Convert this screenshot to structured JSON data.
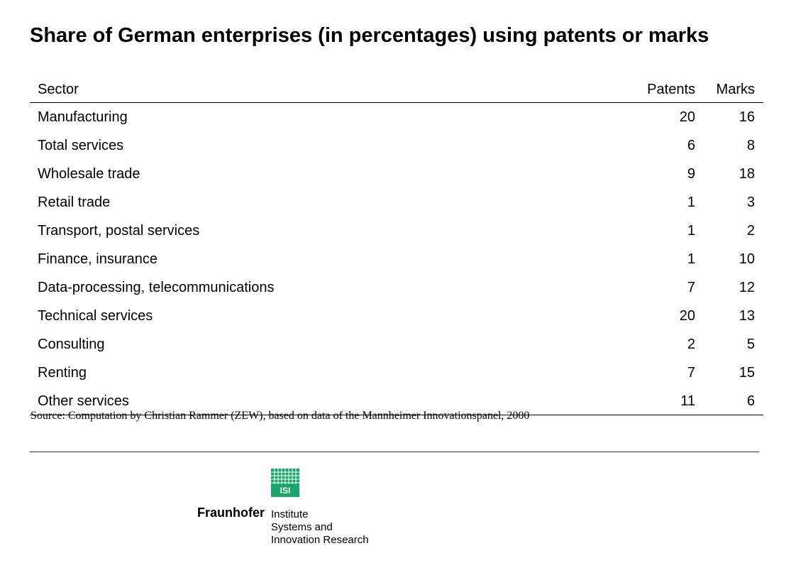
{
  "title": "Share of German enterprises (in percentages) using patents or marks",
  "table": {
    "headers": {
      "sector": "Sector",
      "patents": "Patents",
      "marks": "Marks"
    },
    "rows": [
      {
        "sector": "Manufacturing",
        "patents": "20",
        "marks": "16"
      },
      {
        "sector": "Total services",
        "patents": "6",
        "marks": "8"
      },
      {
        "sector": "Wholesale trade",
        "patents": "9",
        "marks": "18"
      },
      {
        "sector": "Retail trade",
        "patents": "1",
        "marks": "3"
      },
      {
        "sector": "Transport, postal services",
        "patents": "1",
        "marks": "2"
      },
      {
        "sector": "Finance, insurance",
        "patents": "1",
        "marks": "10"
      },
      {
        "sector": "Data-processing, telecommunications",
        "patents": "7",
        "marks": "12"
      },
      {
        "sector": "Technical services",
        "patents": "20",
        "marks": "13"
      },
      {
        "sector": "Consulting",
        "patents": "2",
        "marks": "5"
      },
      {
        "sector": "Renting",
        "patents": "7",
        "marks": "15"
      },
      {
        "sector": "Other services",
        "patents": "11",
        "marks": "6"
      }
    ]
  },
  "source": "Source: Computation by Christian Rammer (ZEW), based on data of the Mannheimer Innovationspanel, 2000",
  "logo": {
    "mark_text": "ISI",
    "name": "Fraunhofer",
    "lines": [
      "Institute",
      "Systems and",
      "Innovation Research"
    ],
    "color": "#1aa66a"
  }
}
